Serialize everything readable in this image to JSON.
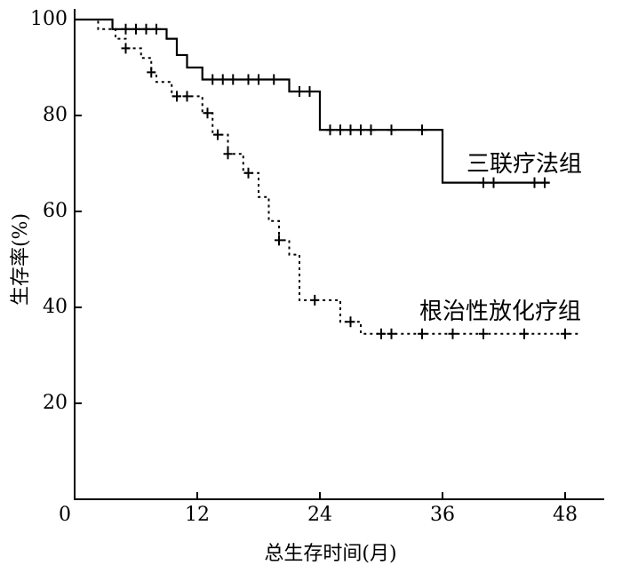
{
  "chart_data": {
    "type": "step",
    "x_label": "总生存时间(月)",
    "y_label": "生存率(%)",
    "xlim": [
      0,
      52
    ],
    "xticks": [
      0,
      12,
      24,
      36,
      48
    ],
    "ylim": [
      0,
      100
    ],
    "yticks": [
      20,
      40,
      60,
      80,
      100
    ],
    "series": [
      {
        "name": "三联疗法组",
        "color": "#000000",
        "dash": "solid",
        "x": [
          0,
          3.7,
          9,
          10,
          11,
          12.5,
          21,
          24,
          36,
          46.5
        ],
        "values": [
          100,
          98,
          96,
          92.6,
          90,
          87.5,
          85,
          77,
          66,
          66
        ],
        "censor_x": [
          5,
          6,
          7,
          8,
          13.5,
          14.5,
          15.5,
          17,
          18,
          19.5,
          22,
          23,
          25,
          26,
          27,
          28,
          29,
          31,
          34,
          40,
          41,
          45,
          46
        ],
        "censor_values": [
          98,
          98,
          98,
          98,
          87.5,
          87.5,
          87.5,
          87.5,
          87.5,
          87.5,
          85,
          85,
          77,
          77,
          77,
          77,
          77,
          77,
          77,
          66,
          66,
          66,
          66
        ]
      },
      {
        "name": "根治性放化疗组",
        "color": "#000000",
        "dash": "dotted",
        "x": [
          0,
          2.3,
          4,
          5,
          6.5,
          7.5,
          8,
          9.5,
          12.5,
          13.5,
          15,
          16.5,
          18,
          19,
          20,
          21,
          22,
          26,
          28,
          49.5
        ],
        "values": [
          100,
          98,
          96,
          94,
          92,
          89,
          87,
          84,
          80.5,
          76,
          72,
          68,
          63,
          58,
          54,
          51,
          41.5,
          37,
          34.5,
          34.5
        ],
        "censor_x": [
          5,
          7.5,
          10,
          11,
          13,
          14,
          15,
          17,
          20,
          23.5,
          27,
          30,
          31,
          34,
          37,
          40,
          44,
          48
        ],
        "censor_values": [
          94,
          89,
          84,
          84,
          80.5,
          76,
          72,
          68,
          54,
          41.5,
          37,
          34.5,
          34.5,
          34.5,
          34.5,
          34.5,
          34.5,
          34.5
        ]
      }
    ]
  }
}
